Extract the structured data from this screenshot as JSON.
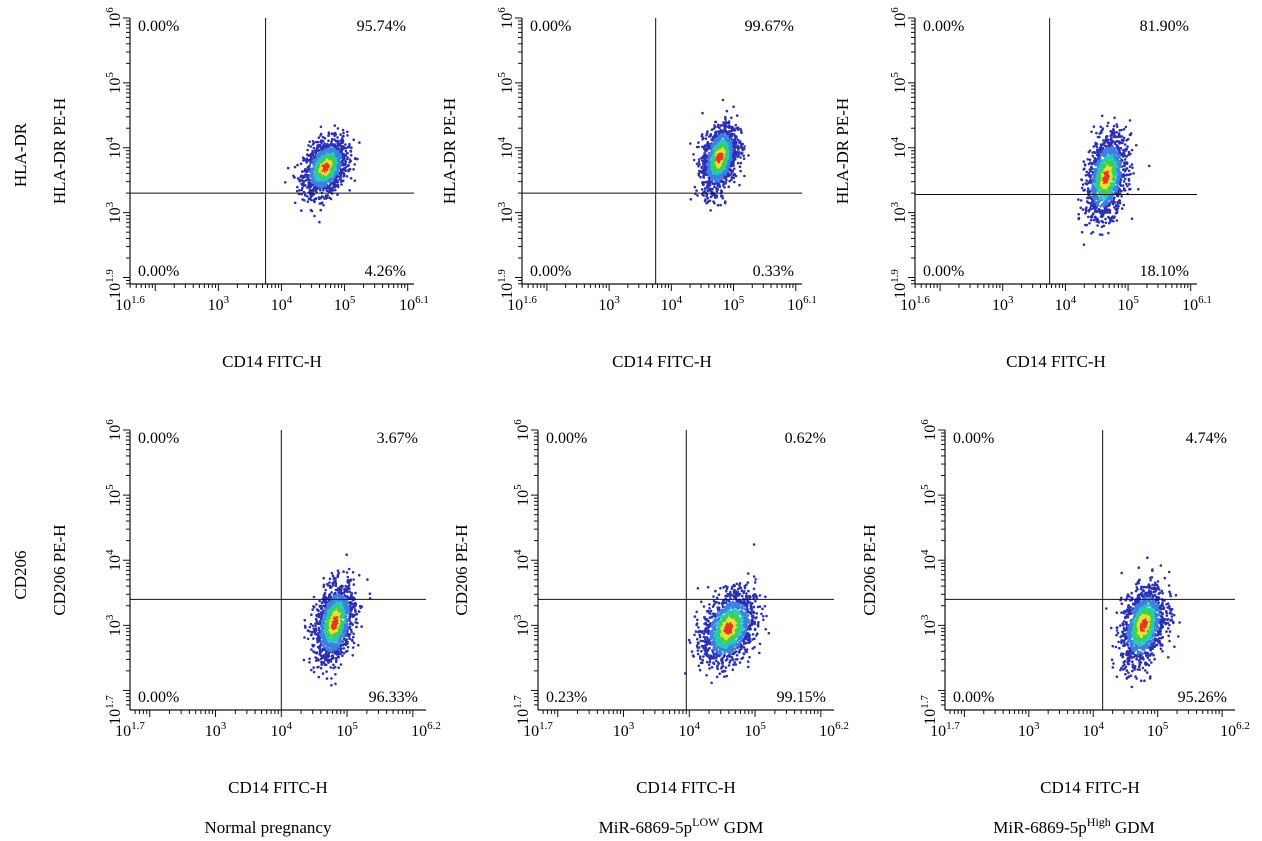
{
  "row_labels": [
    "HLA-DR",
    "CD206"
  ],
  "column_captions": [
    {
      "main": "Normal pregnancy",
      "sup": "",
      "suffix": ""
    },
    {
      "main": "MiR-6869-5p",
      "sup": "LOW",
      "suffix": " GDM"
    },
    {
      "main": "MiR-6869-5p",
      "sup": "High",
      "suffix": " GDM"
    }
  ],
  "colors": {
    "axis": "#111111",
    "density": [
      "#2b2fb3",
      "#3f7fe0",
      "#25c9c4",
      "#3fcf4a",
      "#e8e03a",
      "#e53a1e"
    ]
  },
  "chart_data": [
    {
      "type": "scatter",
      "panel": "HLA-DR / Normal pregnancy",
      "xlabel": "CD14 FITC-H",
      "ylabel": "HLA-DR PE-H",
      "x_scale": "log",
      "y_scale": "log",
      "xlim": [
        39.8,
        1258925
      ],
      "ylim": [
        79.4,
        1000000
      ],
      "x_ticks": [
        {
          "v": 39.8,
          "base": "10",
          "exp": "1.6"
        },
        {
          "v": 1000,
          "base": "10",
          "exp": "3"
        },
        {
          "v": 10000,
          "base": "10",
          "exp": "4"
        },
        {
          "v": 100000,
          "base": "10",
          "exp": "5"
        },
        {
          "v": 1258925,
          "base": "10",
          "exp": "6.1"
        }
      ],
      "y_ticks": [
        {
          "v": 79.4,
          "base": "10",
          "exp": "1.9"
        },
        {
          "v": 1000,
          "base": "10",
          "exp": "3"
        },
        {
          "v": 10000,
          "base": "10",
          "exp": "4"
        },
        {
          "v": 100000,
          "base": "10",
          "exp": "5"
        },
        {
          "v": 1000000,
          "base": "10",
          "exp": "6"
        }
      ],
      "gate": {
        "x": 5600,
        "y": 2000
      },
      "quadrants": {
        "UL": "0.00%",
        "UR": "95.74%",
        "LL": "0.00%",
        "LR": "4.26%"
      },
      "population": {
        "center": [
          50000,
          5000
        ],
        "spread": [
          0.17,
          0.2
        ],
        "n": 1400
      }
    },
    {
      "type": "scatter",
      "panel": "HLA-DR / MiR-6869-5p LOW GDM",
      "xlabel": "CD14 FITC-H",
      "ylabel": "HLA-DR PE-H",
      "x_scale": "log",
      "y_scale": "log",
      "xlim": [
        39.8,
        1258925
      ],
      "ylim": [
        79.4,
        1000000
      ],
      "x_ticks": [
        {
          "v": 39.8,
          "base": "10",
          "exp": "1.6"
        },
        {
          "v": 1000,
          "base": "10",
          "exp": "3"
        },
        {
          "v": 10000,
          "base": "10",
          "exp": "4"
        },
        {
          "v": 100000,
          "base": "10",
          "exp": "5"
        },
        {
          "v": 1258925,
          "base": "10",
          "exp": "6.1"
        }
      ],
      "y_ticks": [
        {
          "v": 79.4,
          "base": "10",
          "exp": "1.9"
        },
        {
          "v": 1000,
          "base": "10",
          "exp": "3"
        },
        {
          "v": 10000,
          "base": "10",
          "exp": "4"
        },
        {
          "v": 100000,
          "base": "10",
          "exp": "5"
        },
        {
          "v": 1000000,
          "base": "10",
          "exp": "6"
        }
      ],
      "gate": {
        "x": 5600,
        "y": 2000
      },
      "quadrants": {
        "UL": "0.00%",
        "UR": "99.67%",
        "LL": "0.00%",
        "LR": "0.33%"
      },
      "population": {
        "center": [
          60000,
          7000
        ],
        "spread": [
          0.14,
          0.24
        ],
        "n": 1400
      }
    },
    {
      "type": "scatter",
      "panel": "HLA-DR / MiR-6869-5p High GDM",
      "xlabel": "CD14 FITC-H",
      "ylabel": "HLA-DR PE-H",
      "x_scale": "log",
      "y_scale": "log",
      "xlim": [
        39.8,
        1258925
      ],
      "ylim": [
        79.4,
        1000000
      ],
      "x_ticks": [
        {
          "v": 39.8,
          "base": "10",
          "exp": "1.6"
        },
        {
          "v": 1000,
          "base": "10",
          "exp": "3"
        },
        {
          "v": 10000,
          "base": "10",
          "exp": "4"
        },
        {
          "v": 100000,
          "base": "10",
          "exp": "5"
        },
        {
          "v": 1258925,
          "base": "10",
          "exp": "6.1"
        }
      ],
      "y_ticks": [
        {
          "v": 79.4,
          "base": "10",
          "exp": "1.9"
        },
        {
          "v": 1000,
          "base": "10",
          "exp": "3"
        },
        {
          "v": 10000,
          "base": "10",
          "exp": "4"
        },
        {
          "v": 100000,
          "base": "10",
          "exp": "5"
        },
        {
          "v": 1000000,
          "base": "10",
          "exp": "6"
        }
      ],
      "gate": {
        "x": 5600,
        "y": 1900
      },
      "quadrants": {
        "UL": "0.00%",
        "UR": "81.90%",
        "LL": "0.00%",
        "LR": "18.10%"
      },
      "population": {
        "center": [
          45000,
          3500
        ],
        "spread": [
          0.16,
          0.3
        ],
        "n": 1400
      }
    },
    {
      "type": "scatter",
      "panel": "CD206 / Normal pregnancy",
      "xlabel": "CD14 FITC-H",
      "ylabel": "CD206 PE-H",
      "x_scale": "log",
      "y_scale": "log",
      "xlim": [
        50.1,
        1584893
      ],
      "ylim": [
        50.1,
        1000000
      ],
      "x_ticks": [
        {
          "v": 50.1,
          "base": "10",
          "exp": "1.7"
        },
        {
          "v": 1000,
          "base": "10",
          "exp": "3"
        },
        {
          "v": 10000,
          "base": "10",
          "exp": "4"
        },
        {
          "v": 100000,
          "base": "10",
          "exp": "5"
        },
        {
          "v": 1584893,
          "base": "10",
          "exp": "6.2"
        }
      ],
      "y_ticks": [
        {
          "v": 50.1,
          "base": "10",
          "exp": "1.7"
        },
        {
          "v": 1000,
          "base": "10",
          "exp": "3"
        },
        {
          "v": 10000,
          "base": "10",
          "exp": "4"
        },
        {
          "v": 100000,
          "base": "10",
          "exp": "5"
        },
        {
          "v": 1000000,
          "base": "10",
          "exp": "6"
        }
      ],
      "gate": {
        "x": 10000,
        "y": 2500
      },
      "quadrants": {
        "UL": "0.00%",
        "UR": "3.67%",
        "LL": "0.00%",
        "LR": "96.33%"
      },
      "population": {
        "center": [
          65000,
          1100
        ],
        "spread": [
          0.15,
          0.28
        ],
        "n": 1400
      }
    },
    {
      "type": "scatter",
      "panel": "CD206 / MiR-6869-5p LOW GDM",
      "xlabel": "CD14 FITC-H",
      "ylabel": "CD206 PE-H",
      "x_scale": "log",
      "y_scale": "log",
      "xlim": [
        50.1,
        1584893
      ],
      "ylim": [
        50.1,
        1000000
      ],
      "x_ticks": [
        {
          "v": 50.1,
          "base": "10",
          "exp": "1.7"
        },
        {
          "v": 1000,
          "base": "10",
          "exp": "3"
        },
        {
          "v": 10000,
          "base": "10",
          "exp": "4"
        },
        {
          "v": 100000,
          "base": "10",
          "exp": "5"
        },
        {
          "v": 1584893,
          "base": "10",
          "exp": "6.2"
        }
      ],
      "y_ticks": [
        {
          "v": 50.1,
          "base": "10",
          "exp": "1.7"
        },
        {
          "v": 1000,
          "base": "10",
          "exp": "3"
        },
        {
          "v": 10000,
          "base": "10",
          "exp": "4"
        },
        {
          "v": 100000,
          "base": "10",
          "exp": "5"
        },
        {
          "v": 1000000,
          "base": "10",
          "exp": "6"
        }
      ],
      "gate": {
        "x": 9000,
        "y": 2500
      },
      "quadrants": {
        "UL": "0.00%",
        "UR": "0.62%",
        "LL": "0.23%",
        "LR": "99.15%"
      },
      "population": {
        "center": [
          40000,
          900
        ],
        "spread": [
          0.2,
          0.26
        ],
        "n": 1400
      }
    },
    {
      "type": "scatter",
      "panel": "CD206 / MiR-6869-5p High GDM",
      "xlabel": "CD14 FITC-H",
      "ylabel": "CD206 PE-H",
      "x_scale": "log",
      "y_scale": "log",
      "xlim": [
        50.1,
        1584893
      ],
      "ylim": [
        50.1,
        1000000
      ],
      "x_ticks": [
        {
          "v": 50.1,
          "base": "10",
          "exp": "1.7"
        },
        {
          "v": 1000,
          "base": "10",
          "exp": "3"
        },
        {
          "v": 10000,
          "base": "10",
          "exp": "4"
        },
        {
          "v": 100000,
          "base": "10",
          "exp": "5"
        },
        {
          "v": 1584893,
          "base": "10",
          "exp": "6.2"
        }
      ],
      "y_ticks": [
        {
          "v": 50.1,
          "base": "10",
          "exp": "1.7"
        },
        {
          "v": 1000,
          "base": "10",
          "exp": "3"
        },
        {
          "v": 10000,
          "base": "10",
          "exp": "4"
        },
        {
          "v": 100000,
          "base": "10",
          "exp": "5"
        },
        {
          "v": 1000000,
          "base": "10",
          "exp": "6"
        }
      ],
      "gate": {
        "x": 14000,
        "y": 2500
      },
      "quadrants": {
        "UL": "0.00%",
        "UR": "4.74%",
        "LL": "0.00%",
        "LR": "95.26%"
      },
      "population": {
        "center": [
          60000,
          1000
        ],
        "spread": [
          0.17,
          0.28
        ],
        "n": 1400
      }
    }
  ]
}
